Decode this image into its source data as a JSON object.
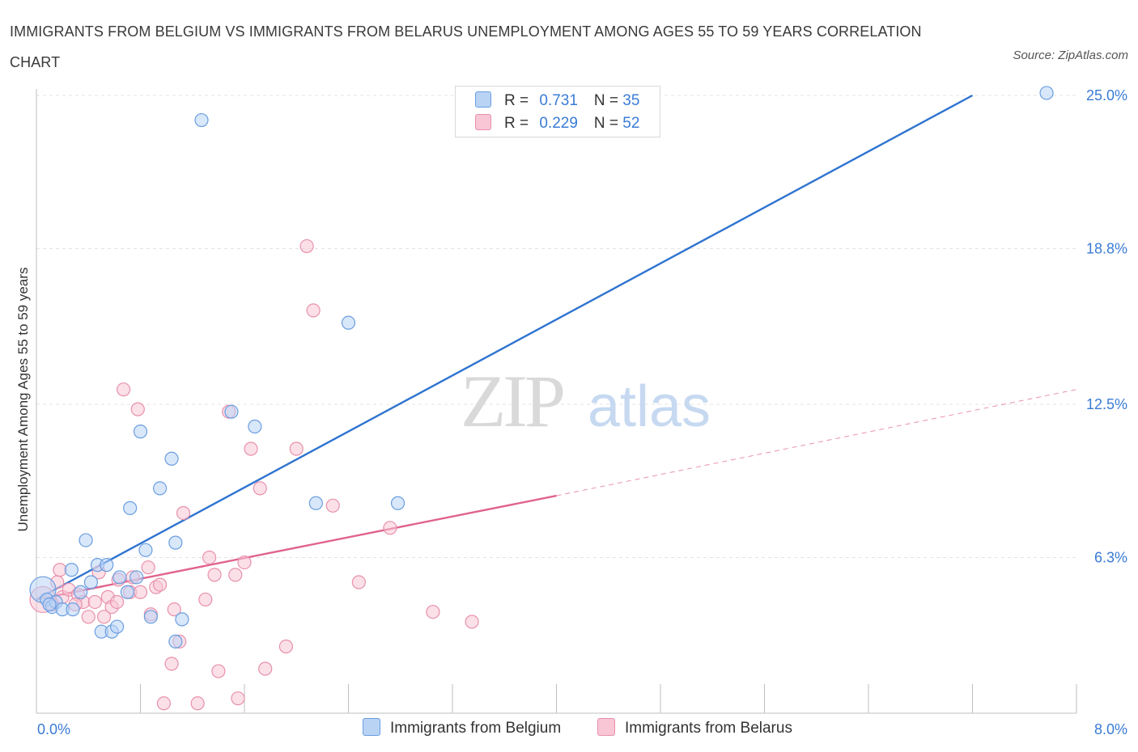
{
  "title": "IMMIGRANTS FROM BELGIUM VS IMMIGRANTS FROM BELARUS UNEMPLOYMENT AMONG AGES 55 TO 59 YEARS CORRELATION CHART",
  "source": "Source: ZipAtlas.com",
  "watermark": {
    "zip": "ZIP",
    "atlas": "atlas"
  },
  "legend": {
    "belgium": {
      "r_label": "R = ",
      "r_value": "0.731",
      "n_label": "N = ",
      "n_value": "35"
    },
    "belarus": {
      "r_label": "R = ",
      "r_value": "0.229",
      "n_label": "N = ",
      "n_value": "52"
    }
  },
  "colors": {
    "belgium_fill": "#b9d3f5",
    "belgium_stroke": "#6a9ee0",
    "belgium_line": "#2f74d0",
    "belarus_fill": "#f8c6d5",
    "belarus_stroke": "#e890ab",
    "belarus_line": "#e0638e",
    "grid": "#e3e3e3",
    "axis_text": "#3a7bd5"
  },
  "chart_data": {
    "type": "scatter",
    "title": "IMMIGRANTS FROM BELGIUM VS IMMIGRANTS FROM BELARUS UNEMPLOYMENT AMONG AGES 55 TO 59 YEARS CORRELATION CHART",
    "xlabel": "",
    "ylabel": "Unemployment Among Ages 55 to 59 years",
    "xlim": [
      0,
      8.0
    ],
    "ylim": [
      0,
      25.0
    ],
    "x_tick_labels": [
      "0.0%",
      "8.0%"
    ],
    "y_ticks": [
      6.3,
      12.5,
      18.8,
      25.0
    ],
    "y_tick_labels": [
      "6.3%",
      "12.5%",
      "18.8%",
      "25.0%"
    ],
    "series": [
      {
        "name": "Immigrants from Belgium",
        "trend": {
          "x": [
            0.0,
            7.2
          ],
          "y": [
            4.6,
            25.0
          ],
          "dashed_to": null
        },
        "points": [
          {
            "x": 0.05,
            "y": 5.0,
            "big": true
          },
          {
            "x": 0.08,
            "y": 4.6
          },
          {
            "x": 0.12,
            "y": 4.3
          },
          {
            "x": 0.15,
            "y": 4.5
          },
          {
            "x": 0.2,
            "y": 4.2
          },
          {
            "x": 0.28,
            "y": 4.2
          },
          {
            "x": 0.27,
            "y": 5.8
          },
          {
            "x": 0.34,
            "y": 4.9
          },
          {
            "x": 0.38,
            "y": 7.0
          },
          {
            "x": 0.42,
            "y": 5.3
          },
          {
            "x": 0.47,
            "y": 6.0
          },
          {
            "x": 0.5,
            "y": 3.3
          },
          {
            "x": 0.54,
            "y": 6.0
          },
          {
            "x": 0.58,
            "y": 3.3
          },
          {
            "x": 0.62,
            "y": 3.5
          },
          {
            "x": 0.64,
            "y": 5.5
          },
          {
            "x": 0.7,
            "y": 4.9
          },
          {
            "x": 0.72,
            "y": 8.3
          },
          {
            "x": 0.77,
            "y": 5.5
          },
          {
            "x": 0.8,
            "y": 11.4
          },
          {
            "x": 0.84,
            "y": 6.6
          },
          {
            "x": 0.88,
            "y": 3.9
          },
          {
            "x": 0.95,
            "y": 9.1
          },
          {
            "x": 1.04,
            "y": 10.3
          },
          {
            "x": 1.07,
            "y": 6.9
          },
          {
            "x": 1.07,
            "y": 2.9
          },
          {
            "x": 1.12,
            "y": 3.8
          },
          {
            "x": 1.27,
            "y": 24.0
          },
          {
            "x": 1.5,
            "y": 12.2
          },
          {
            "x": 1.68,
            "y": 11.6
          },
          {
            "x": 2.15,
            "y": 8.5
          },
          {
            "x": 2.4,
            "y": 15.8
          },
          {
            "x": 2.78,
            "y": 8.5
          },
          {
            "x": 7.77,
            "y": 25.1
          },
          {
            "x": 0.1,
            "y": 4.4
          }
        ]
      },
      {
        "name": "Immigrants from Belarus",
        "trend": {
          "x": [
            0.0,
            4.0
          ],
          "y": [
            4.6,
            8.8
          ],
          "dashed_to": [
            8.0,
            13.1
          ]
        },
        "points": [
          {
            "x": 0.05,
            "y": 4.6,
            "big": true
          },
          {
            "x": 0.12,
            "y": 4.4
          },
          {
            "x": 0.16,
            "y": 5.3
          },
          {
            "x": 0.18,
            "y": 5.8
          },
          {
            "x": 0.2,
            "y": 4.7
          },
          {
            "x": 0.25,
            "y": 5.0
          },
          {
            "x": 0.32,
            "y": 4.8
          },
          {
            "x": 0.36,
            "y": 4.5
          },
          {
            "x": 0.4,
            "y": 3.9
          },
          {
            "x": 0.45,
            "y": 4.5
          },
          {
            "x": 0.48,
            "y": 5.7
          },
          {
            "x": 0.52,
            "y": 3.9
          },
          {
            "x": 0.55,
            "y": 4.7
          },
          {
            "x": 0.58,
            "y": 4.3
          },
          {
            "x": 0.62,
            "y": 4.5
          },
          {
            "x": 0.67,
            "y": 13.1
          },
          {
            "x": 0.72,
            "y": 4.9
          },
          {
            "x": 0.74,
            "y": 5.5
          },
          {
            "x": 0.78,
            "y": 12.3
          },
          {
            "x": 0.8,
            "y": 4.9
          },
          {
            "x": 0.86,
            "y": 5.9
          },
          {
            "x": 0.88,
            "y": 4.0
          },
          {
            "x": 0.92,
            "y": 5.1
          },
          {
            "x": 0.95,
            "y": 5.2
          },
          {
            "x": 0.98,
            "y": 0.4
          },
          {
            "x": 1.04,
            "y": 2.0
          },
          {
            "x": 1.06,
            "y": 4.2
          },
          {
            "x": 1.1,
            "y": 2.9
          },
          {
            "x": 1.13,
            "y": 8.1
          },
          {
            "x": 1.24,
            "y": 0.4
          },
          {
            "x": 1.3,
            "y": 4.6
          },
          {
            "x": 1.33,
            "y": 6.3
          },
          {
            "x": 1.37,
            "y": 5.6
          },
          {
            "x": 1.4,
            "y": 1.7
          },
          {
            "x": 1.48,
            "y": 12.2
          },
          {
            "x": 1.53,
            "y": 5.6
          },
          {
            "x": 1.55,
            "y": 0.6
          },
          {
            "x": 1.6,
            "y": 6.1
          },
          {
            "x": 1.65,
            "y": 10.7
          },
          {
            "x": 1.72,
            "y": 9.1
          },
          {
            "x": 1.76,
            "y": 1.8
          },
          {
            "x": 1.92,
            "y": 2.7
          },
          {
            "x": 2.0,
            "y": 10.7
          },
          {
            "x": 2.08,
            "y": 18.9
          },
          {
            "x": 2.13,
            "y": 16.3
          },
          {
            "x": 2.28,
            "y": 8.4
          },
          {
            "x": 2.48,
            "y": 5.3
          },
          {
            "x": 2.72,
            "y": 7.5
          },
          {
            "x": 3.05,
            "y": 4.1
          },
          {
            "x": 3.35,
            "y": 3.7
          },
          {
            "x": 0.3,
            "y": 4.4
          },
          {
            "x": 0.63,
            "y": 5.4
          }
        ]
      }
    ]
  },
  "bottom_legend": {
    "belgium": "Immigrants from Belgium",
    "belarus": "Immigrants from Belarus"
  }
}
